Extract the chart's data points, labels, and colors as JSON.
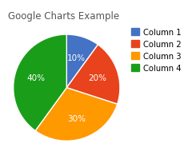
{
  "title": "Google Charts Example",
  "labels": [
    "Column 1",
    "Column 2",
    "Column 3",
    "Column 4"
  ],
  "values": [
    10,
    20,
    30,
    40
  ],
  "colors": [
    "#4472C4",
    "#E8431C",
    "#FF9900",
    "#1A9E1A"
  ],
  "pct_labels": [
    "10%",
    "20%",
    "30%",
    "40%"
  ],
  "pct_colors": [
    "white",
    "white",
    "white",
    "white"
  ],
  "startangle": 90,
  "background_color": "#ffffff",
  "title_fontsize": 8.5,
  "pct_fontsize": 7.5,
  "legend_fontsize": 7.2
}
